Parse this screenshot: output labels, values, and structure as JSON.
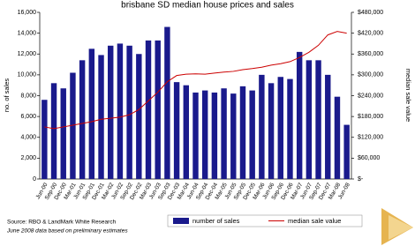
{
  "chart_data": {
    "type": "bar-line",
    "title": "brisbane SD median house prices and sales",
    "y_label": "no. of sales",
    "y2_label": "median sale value",
    "source": "Source: RBO & LandMark White Research",
    "note": "June 2008 data based on preliminary estimates",
    "categories": [
      "Jun-00",
      "Sep-00",
      "Dec-00",
      "Mar-01",
      "Jun-01",
      "Sep-01",
      "Dec-01",
      "Mar-02",
      "Jun-02",
      "Sep-02",
      "Dec-02",
      "Mar-03",
      "Jun-03",
      "Sep-03",
      "Dec-03",
      "Mar-04",
      "Jun-04",
      "Sep-04",
      "Dec-04",
      "Mar-05",
      "Jun-05",
      "Sep-05",
      "Dec-05",
      "Mar-06",
      "Jun-06",
      "Sep-06",
      "Dec-06",
      "Mar-07",
      "Jun-07",
      "Sep-07",
      "Dec-07",
      "Mar-08",
      "Jun-08"
    ],
    "series": [
      {
        "name": "number of sales",
        "color": "#1a1a8c",
        "type": "bar",
        "values": [
          7600,
          9200,
          8700,
          10200,
          11400,
          12500,
          11900,
          12800,
          13000,
          12800,
          12000,
          13300,
          13300,
          14600,
          9300,
          9000,
          8300,
          8500,
          8300,
          8700,
          8200,
          8900,
          8500,
          10000,
          9200,
          9800,
          9600,
          12200,
          11400,
          11400,
          10000,
          7900,
          5200
        ]
      },
      {
        "name": "median sale value",
        "color": "#cc0000",
        "type": "line",
        "axis": "y2",
        "values": [
          150000,
          145000,
          150000,
          155000,
          160000,
          165000,
          172000,
          175000,
          178000,
          185000,
          200000,
          225000,
          250000,
          280000,
          298000,
          302000,
          303000,
          302000,
          305000,
          308000,
          310000,
          315000,
          318000,
          322000,
          328000,
          332000,
          338000,
          350000,
          365000,
          385000,
          415000,
          425000,
          420000
        ]
      }
    ],
    "ylim": [
      0,
      16000
    ],
    "yticks": [
      0,
      {
        "value": 2000,
        "label": "2,000"
      },
      {
        "value": 4000,
        "label": "4,000"
      },
      {
        "value": 6000,
        "label": "6,000"
      },
      {
        "value": 8000,
        "label": "8,000"
      },
      {
        "value": 10000,
        "label": "10,000"
      },
      {
        "value": 12000,
        "label": "12,000"
      },
      {
        "value": 14000,
        "label": "14,000"
      },
      {
        "value": 16000,
        "label": "16,000"
      }
    ],
    "y2lim": [
      0,
      480000
    ],
    "y2ticks": [
      {
        "value": 0,
        "label": "$-"
      },
      {
        "value": 60000,
        "label": "$60,000"
      },
      {
        "value": 120000,
        "label": "$120,000"
      },
      {
        "value": 180000,
        "label": "$180,000"
      },
      {
        "value": 240000,
        "label": "$240,000"
      },
      {
        "value": 300000,
        "label": "$300,000"
      },
      {
        "value": 360000,
        "label": "$360,000"
      },
      {
        "value": 420000,
        "label": "$420,000"
      },
      {
        "value": 480000,
        "label": "$480,000"
      }
    ]
  }
}
